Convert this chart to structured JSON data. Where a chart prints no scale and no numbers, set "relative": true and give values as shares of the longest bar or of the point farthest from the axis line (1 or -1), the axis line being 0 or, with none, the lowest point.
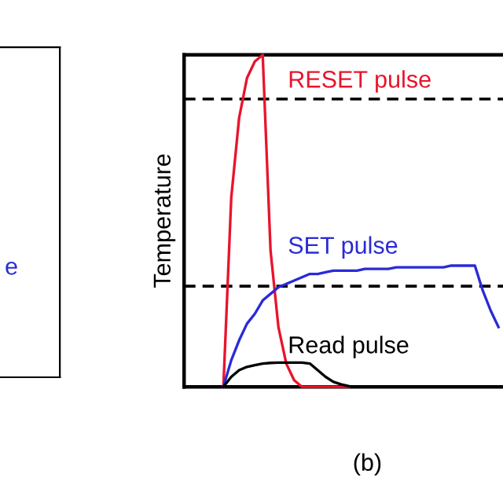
{
  "chart_data": [
    {
      "type": "other",
      "annotations": [
        "e"
      ]
    },
    {
      "type": "line",
      "relative": true,
      "ylabel": "Temperature",
      "annotations": [
        "(b)"
      ],
      "legend": false,
      "tick_labels": false,
      "categories": [
        null,
        null,
        null,
        null,
        null,
        null,
        null,
        null,
        null,
        null,
        null,
        null,
        null,
        null,
        null,
        null,
        null,
        null,
        null,
        null,
        null,
        null,
        null,
        null,
        null,
        null,
        null,
        null,
        null,
        null,
        null,
        null,
        null,
        null,
        null,
        null,
        null,
        null,
        null,
        null,
        null
      ],
      "series": [
        {
          "name": "RESET pulse",
          "color": "#e8142c",
          "values": [
            null,
            null,
            null,
            null,
            null,
            0,
            0.57,
            0.81,
            0.93,
            0.98,
            1.0,
            0.41,
            0.18,
            0.07,
            0.02,
            0,
            0,
            0,
            0,
            0,
            0,
            0,
            null,
            null,
            null,
            null,
            null,
            null,
            null,
            null,
            null,
            null,
            null,
            null,
            null,
            null,
            null,
            null,
            null,
            null,
            null
          ]
        },
        {
          "name": "SET pulse",
          "color": "#2a2ad8",
          "values": [
            null,
            null,
            null,
            null,
            null,
            0,
            0.08,
            0.14,
            0.19,
            0.22,
            0.26,
            0.28,
            0.3,
            0.31,
            0.32,
            0.33,
            0.34,
            0.34,
            0.345,
            0.35,
            0.35,
            0.35,
            0.35,
            0.355,
            0.355,
            0.355,
            0.355,
            0.36,
            0.36,
            0.36,
            0.36,
            0.36,
            0.36,
            0.36,
            0.365,
            0.365,
            0.365,
            0.365,
            0.29,
            0.23,
            0.18
          ]
        },
        {
          "name": "Read pulse",
          "color": "#000000",
          "values": [
            null,
            null,
            null,
            null,
            null,
            0,
            0.03,
            0.05,
            0.06,
            0.065,
            0.07,
            0.072,
            0.073,
            0.073,
            0.073,
            0.073,
            0.07,
            0.05,
            0.03,
            0.015,
            0.007,
            0.002,
            0,
            0,
            0,
            0,
            0,
            0,
            0,
            0,
            0,
            0,
            0,
            0,
            0,
            0,
            0,
            0,
            0,
            0,
            0
          ]
        }
      ],
      "ref_lines": [
        {
          "axis": "y",
          "value": 0.867,
          "color": "#000000",
          "line_style": "dashed"
        },
        {
          "axis": "y",
          "value": 0.303,
          "color": "#000000",
          "line_style": "dashed"
        }
      ]
    }
  ]
}
